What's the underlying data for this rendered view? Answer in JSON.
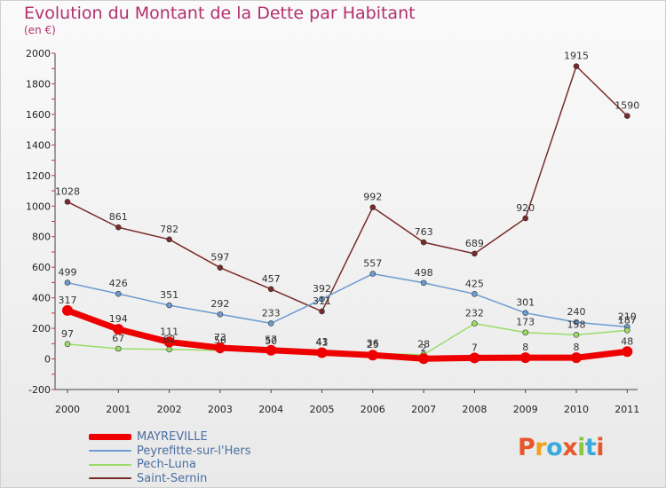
{
  "title": "Evolution du Montant de la Dette par Habitant",
  "subtitle": "(en €)",
  "logo": {
    "text": "Proxiti",
    "colors": [
      "#e8562a",
      "#f0a01e",
      "#3aa9dc",
      "#e8562a",
      "#8cc63e",
      "#3aa9dc",
      "#e8562a"
    ]
  },
  "chart_data": {
    "type": "line",
    "x": [
      "2000",
      "2001",
      "2002",
      "2003",
      "2004",
      "2005",
      "2006",
      "2007",
      "2008",
      "2009",
      "2010",
      "2011"
    ],
    "ylim": [
      -200,
      2000
    ],
    "yticks": [
      "2000",
      "1800",
      "1600",
      "1400",
      "1200",
      "1000",
      "800",
      "600",
      "400",
      "200",
      "0",
      "-200"
    ],
    "grid": false,
    "legend_position": "bottom-left",
    "series": [
      {
        "name": "MAYREVILLE",
        "color": "#ee0000",
        "values": [
          317,
          194,
          111,
          73,
          57,
          41,
          25,
          2,
          7,
          8,
          8,
          48
        ],
        "labels": [
          "317",
          "194",
          "111",
          "73",
          "57",
          "41",
          "25",
          "2",
          "7",
          "8",
          "8",
          "48"
        ]
      },
      {
        "name": "Peyrefitte-sur-l'Hers",
        "color": "#6b9bd0",
        "values": [
          499,
          426,
          351,
          292,
          233,
          392,
          557,
          498,
          425,
          301,
          240,
          210
        ],
        "labels": [
          "499",
          "426",
          "351",
          "292",
          "233",
          "392",
          "557",
          "498",
          "425",
          "301",
          "240",
          "210"
        ]
      },
      {
        "name": "Pech-Luna",
        "color": "#99dd66",
        "values": [
          97,
          67,
          62,
          56,
          50,
          43,
          36,
          28,
          232,
          173,
          158,
          187
        ],
        "labels": [
          "97",
          "67",
          "62",
          "56",
          "50",
          "43",
          "36",
          "28",
          "232",
          "173",
          "158",
          "187"
        ]
      },
      {
        "name": "Saint-Sernin",
        "color": "#7a2a2a",
        "values": [
          1028,
          861,
          782,
          597,
          457,
          311,
          992,
          763,
          689,
          920,
          1915,
          1590
        ],
        "labels": [
          "1028",
          "861",
          "782",
          "597",
          "457",
          "311",
          "992",
          "763",
          "689",
          "920",
          "1915",
          "1590"
        ]
      }
    ]
  }
}
